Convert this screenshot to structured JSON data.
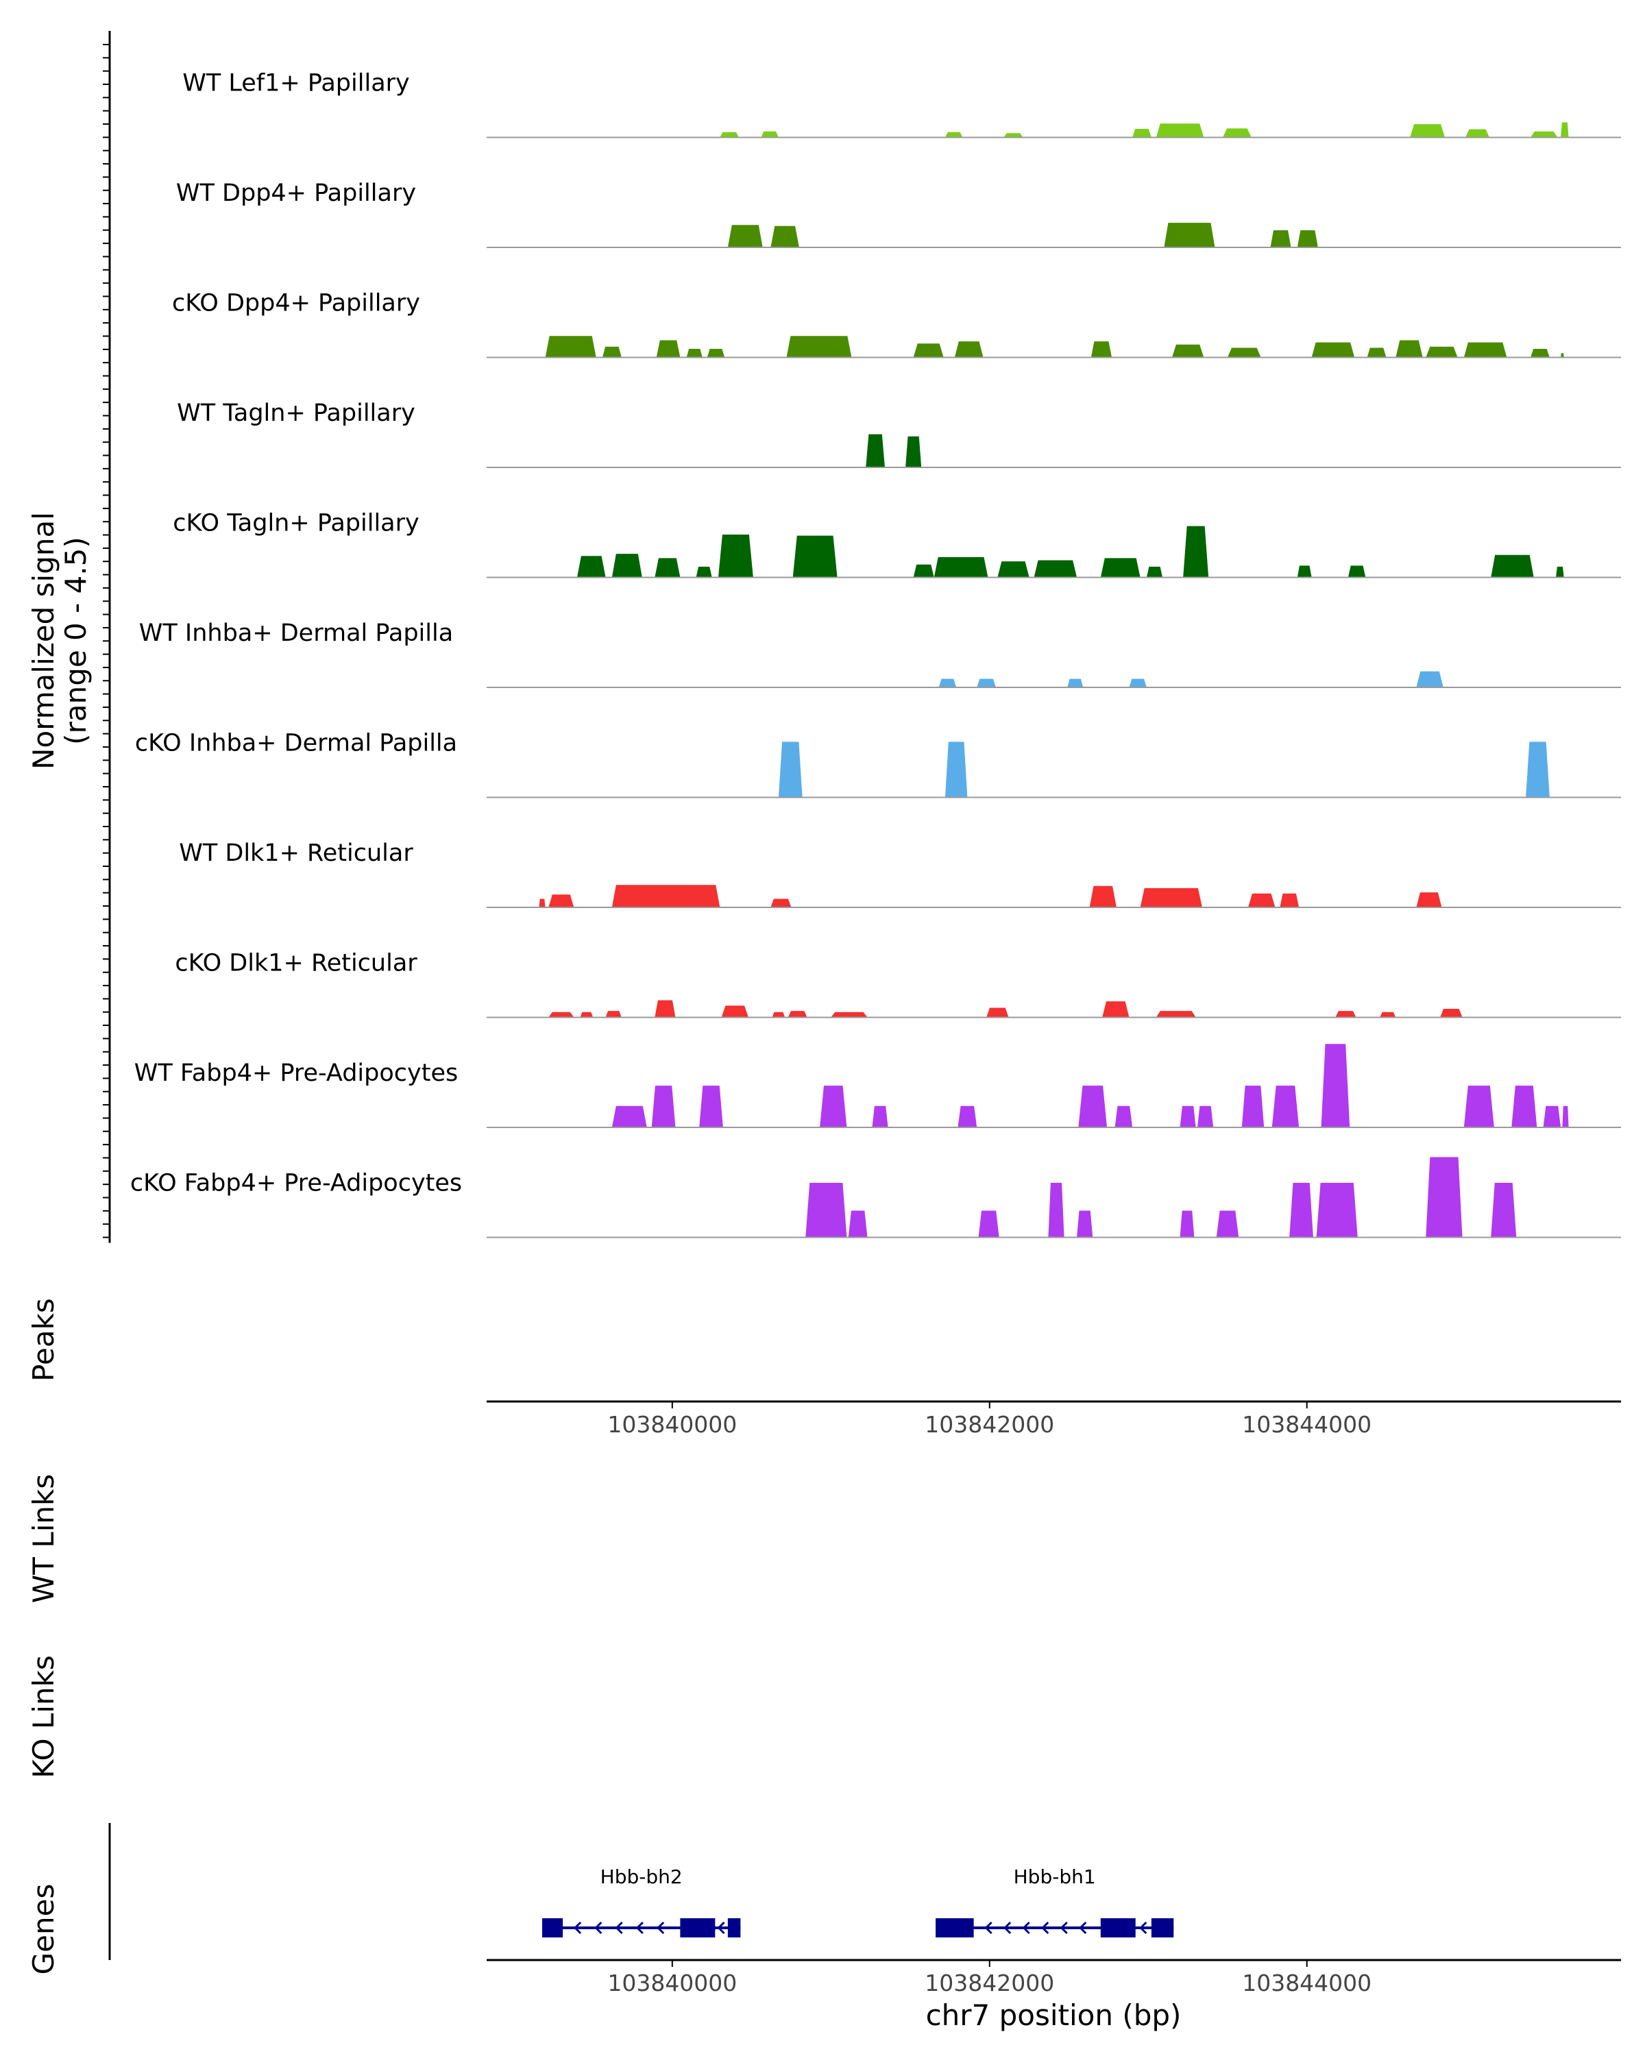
{
  "chart_data": {
    "type": "area",
    "region": {
      "chromosome": "chr7",
      "start": 103838830,
      "end": 103845980
    },
    "coverage": {
      "ylabel_line1": "Normalized signal",
      "ylabel_line2": "(range 0 - 4.5)",
      "ylim": [
        0,
        4.5
      ],
      "tracks": [
        {
          "name": "WT Lef1+ Papillary",
          "color": "#7CCD1A",
          "peaks": [
            {
              "start": 103840300,
              "end": 103840420,
              "value": 0.25
            },
            {
              "start": 103840560,
              "end": 103840670,
              "value": 0.28
            },
            {
              "start": 103841720,
              "end": 103841830,
              "value": 0.25
            },
            {
              "start": 103842090,
              "end": 103842210,
              "value": 0.2
            },
            {
              "start": 103842900,
              "end": 103843020,
              "value": 0.4
            },
            {
              "start": 103843050,
              "end": 103843350,
              "value": 0.65
            },
            {
              "start": 103843470,
              "end": 103843650,
              "value": 0.42
            },
            {
              "start": 103844650,
              "end": 103844870,
              "value": 0.62
            },
            {
              "start": 103845000,
              "end": 103845150,
              "value": 0.38
            },
            {
              "start": 103845410,
              "end": 103845580,
              "value": 0.28
            },
            {
              "start": 103845600,
              "end": 103845650,
              "value": 0.7
            }
          ]
        },
        {
          "name": "WT Dpp4+ Papillary",
          "color": "#4A8B00",
          "peaks": [
            {
              "start": 103840350,
              "end": 103840570,
              "value": 1.05
            },
            {
              "start": 103840620,
              "end": 103840800,
              "value": 1.0
            },
            {
              "start": 103843100,
              "end": 103843420,
              "value": 1.15
            },
            {
              "start": 103843770,
              "end": 103843900,
              "value": 0.8
            },
            {
              "start": 103843940,
              "end": 103844070,
              "value": 0.8
            }
          ]
        },
        {
          "name": "cKO Dpp4+ Papillary",
          "color": "#4A8B00",
          "peaks": [
            {
              "start": 103839200,
              "end": 103839520,
              "value": 1.0
            },
            {
              "start": 103839560,
              "end": 103839680,
              "value": 0.5
            },
            {
              "start": 103839900,
              "end": 103840050,
              "value": 0.8
            },
            {
              "start": 103840090,
              "end": 103840190,
              "value": 0.4
            },
            {
              "start": 103840220,
              "end": 103840330,
              "value": 0.4
            },
            {
              "start": 103840720,
              "end": 103841130,
              "value": 1.0
            },
            {
              "start": 103841520,
              "end": 103841710,
              "value": 0.65
            },
            {
              "start": 103841780,
              "end": 103841960,
              "value": 0.75
            },
            {
              "start": 103842640,
              "end": 103842770,
              "value": 0.75
            },
            {
              "start": 103843150,
              "end": 103843350,
              "value": 0.6
            },
            {
              "start": 103843500,
              "end": 103843710,
              "value": 0.45
            },
            {
              "start": 103844030,
              "end": 103844300,
              "value": 0.7
            },
            {
              "start": 103844380,
              "end": 103844500,
              "value": 0.45
            },
            {
              "start": 103844560,
              "end": 103844730,
              "value": 0.8
            },
            {
              "start": 103844750,
              "end": 103844950,
              "value": 0.5
            },
            {
              "start": 103844990,
              "end": 103845260,
              "value": 0.7
            },
            {
              "start": 103845410,
              "end": 103845530,
              "value": 0.4
            },
            {
              "start": 103845600,
              "end": 103845620,
              "value": 0.2
            }
          ]
        },
        {
          "name": "WT Tagln+ Papillary",
          "color": "#006400",
          "peaks": [
            {
              "start": 103841220,
              "end": 103841340,
              "value": 1.55
            },
            {
              "start": 103841470,
              "end": 103841570,
              "value": 1.45
            }
          ]
        },
        {
          "name": "cKO Tagln+ Papillary",
          "color": "#006400",
          "peaks": [
            {
              "start": 103839400,
              "end": 103839580,
              "value": 1.0
            },
            {
              "start": 103839620,
              "end": 103839810,
              "value": 1.1
            },
            {
              "start": 103839890,
              "end": 103840050,
              "value": 0.9
            },
            {
              "start": 103840150,
              "end": 103840250,
              "value": 0.5
            },
            {
              "start": 103840290,
              "end": 103840510,
              "value": 2.0
            },
            {
              "start": 103840760,
              "end": 103841040,
              "value": 1.95
            },
            {
              "start": 103841520,
              "end": 103841650,
              "value": 0.6
            },
            {
              "start": 103841650,
              "end": 103841990,
              "value": 0.95
            },
            {
              "start": 103842050,
              "end": 103842250,
              "value": 0.75
            },
            {
              "start": 103842280,
              "end": 103842550,
              "value": 0.8
            },
            {
              "start": 103842700,
              "end": 103842950,
              "value": 0.9
            },
            {
              "start": 103842990,
              "end": 103843090,
              "value": 0.5
            },
            {
              "start": 103843220,
              "end": 103843380,
              "value": 2.4
            },
            {
              "start": 103843940,
              "end": 103844030,
              "value": 0.55
            },
            {
              "start": 103844260,
              "end": 103844370,
              "value": 0.55
            },
            {
              "start": 103845160,
              "end": 103845430,
              "value": 1.05
            },
            {
              "start": 103845570,
              "end": 103845620,
              "value": 0.5
            }
          ]
        },
        {
          "name": "WT Inhba+ Dermal Papilla",
          "color": "#5AADE8",
          "peaks": [
            {
              "start": 103841680,
              "end": 103841790,
              "value": 0.4
            },
            {
              "start": 103841920,
              "end": 103842040,
              "value": 0.4
            },
            {
              "start": 103842490,
              "end": 103842590,
              "value": 0.4
            },
            {
              "start": 103842880,
              "end": 103842990,
              "value": 0.4
            },
            {
              "start": 103844690,
              "end": 103844860,
              "value": 0.75
            }
          ]
        },
        {
          "name": "cKO Inhba+ Dermal Papilla",
          "color": "#5AADE8",
          "peaks": [
            {
              "start": 103840670,
              "end": 103840820,
              "value": 2.6
            },
            {
              "start": 103841720,
              "end": 103841860,
              "value": 2.6
            },
            {
              "start": 103845380,
              "end": 103845530,
              "value": 2.6
            }
          ]
        },
        {
          "name": "WT Dlk1+ Reticular",
          "color": "#F43030",
          "peaks": [
            {
              "start": 103839160,
              "end": 103839200,
              "value": 0.4
            },
            {
              "start": 103839220,
              "end": 103839380,
              "value": 0.6
            },
            {
              "start": 103839620,
              "end": 103840300,
              "value": 1.05
            },
            {
              "start": 103840620,
              "end": 103840750,
              "value": 0.4
            },
            {
              "start": 103842630,
              "end": 103842800,
              "value": 1.0
            },
            {
              "start": 103842950,
              "end": 103843340,
              "value": 0.9
            },
            {
              "start": 103843630,
              "end": 103843800,
              "value": 0.65
            },
            {
              "start": 103843830,
              "end": 103843950,
              "value": 0.65
            },
            {
              "start": 103844690,
              "end": 103844850,
              "value": 0.7
            }
          ]
        },
        {
          "name": "cKO Dlk1+ Reticular",
          "color": "#F43030",
          "peaks": [
            {
              "start": 103839220,
              "end": 103839380,
              "value": 0.25
            },
            {
              "start": 103839420,
              "end": 103839500,
              "value": 0.25
            },
            {
              "start": 103839580,
              "end": 103839680,
              "value": 0.3
            },
            {
              "start": 103839890,
              "end": 103840020,
              "value": 0.8
            },
            {
              "start": 103840310,
              "end": 103840480,
              "value": 0.55
            },
            {
              "start": 103840630,
              "end": 103840710,
              "value": 0.25
            },
            {
              "start": 103840730,
              "end": 103840850,
              "value": 0.3
            },
            {
              "start": 103841000,
              "end": 103841230,
              "value": 0.25
            },
            {
              "start": 103841980,
              "end": 103842120,
              "value": 0.45
            },
            {
              "start": 103842710,
              "end": 103842880,
              "value": 0.75
            },
            {
              "start": 103843050,
              "end": 103843300,
              "value": 0.3
            },
            {
              "start": 103844180,
              "end": 103844310,
              "value": 0.3
            },
            {
              "start": 103844460,
              "end": 103844560,
              "value": 0.25
            },
            {
              "start": 103844840,
              "end": 103844980,
              "value": 0.4
            }
          ]
        },
        {
          "name": "WT Fabp4+ Pre-Adipocytes",
          "color": "#B03AF0",
          "peaks": [
            {
              "start": 103839620,
              "end": 103839840,
              "value": 1.0
            },
            {
              "start": 103839870,
              "end": 103840020,
              "value": 1.95
            },
            {
              "start": 103840170,
              "end": 103840320,
              "value": 1.95
            },
            {
              "start": 103840930,
              "end": 103841100,
              "value": 1.95
            },
            {
              "start": 103841260,
              "end": 103841360,
              "value": 1.0
            },
            {
              "start": 103841800,
              "end": 103841920,
              "value": 1.0
            },
            {
              "start": 103842560,
              "end": 103842740,
              "value": 1.95
            },
            {
              "start": 103842790,
              "end": 103842900,
              "value": 1.0
            },
            {
              "start": 103843200,
              "end": 103843300,
              "value": 1.0
            },
            {
              "start": 103843310,
              "end": 103843410,
              "value": 1.0
            },
            {
              "start": 103843590,
              "end": 103843730,
              "value": 1.95
            },
            {
              "start": 103843780,
              "end": 103843950,
              "value": 1.95
            },
            {
              "start": 103844090,
              "end": 103844270,
              "value": 3.9
            },
            {
              "start": 103844990,
              "end": 103845180,
              "value": 1.95
            },
            {
              "start": 103845290,
              "end": 103845450,
              "value": 1.95
            },
            {
              "start": 103845490,
              "end": 103845600,
              "value": 1.0
            },
            {
              "start": 103845610,
              "end": 103845650,
              "value": 1.0
            }
          ]
        },
        {
          "name": "cKO Fabp4+ Pre-Adipocytes",
          "color": "#B03AF0",
          "peaks": [
            {
              "start": 103840840,
              "end": 103841100,
              "value": 2.55
            },
            {
              "start": 103841110,
              "end": 103841230,
              "value": 1.25
            },
            {
              "start": 103841930,
              "end": 103842060,
              "value": 1.25
            },
            {
              "start": 103842370,
              "end": 103842470,
              "value": 2.55
            },
            {
              "start": 103842550,
              "end": 103842650,
              "value": 1.25
            },
            {
              "start": 103843200,
              "end": 103843290,
              "value": 1.25
            },
            {
              "start": 103843430,
              "end": 103843570,
              "value": 1.25
            },
            {
              "start": 103843890,
              "end": 103844040,
              "value": 2.55
            },
            {
              "start": 103844060,
              "end": 103844320,
              "value": 2.55
            },
            {
              "start": 103844750,
              "end": 103844980,
              "value": 3.75
            },
            {
              "start": 103845160,
              "end": 103845320,
              "value": 2.55
            }
          ]
        }
      ]
    },
    "peaks_panel": {
      "label": "Peaks"
    },
    "links_panels": [
      {
        "label": "WT Links"
      },
      {
        "label": "KO Links"
      }
    ],
    "genes_panel": {
      "label": "Genes",
      "genes": [
        {
          "name": "Hbb-bh2",
          "strand": "-",
          "start": 103839180,
          "end": 103840430,
          "exons": [
            [
              103839180,
              103839310
            ],
            [
              103840050,
              103840270
            ],
            [
              103840350,
              103840430
            ]
          ]
        },
        {
          "name": "Hbb-bh1",
          "strand": "-",
          "start": 103841660,
          "end": 103843160,
          "exons": [
            [
              103841660,
              103841900
            ],
            [
              103842700,
              103842920
            ],
            [
              103843020,
              103843160
            ]
          ]
        }
      ]
    },
    "x_axis": {
      "xlabel": "chr7 position (bp)",
      "ticks": [
        103840000,
        103842000,
        103844000
      ],
      "tick_labels": [
        "103840000",
        "103842000",
        "103844000"
      ]
    }
  }
}
